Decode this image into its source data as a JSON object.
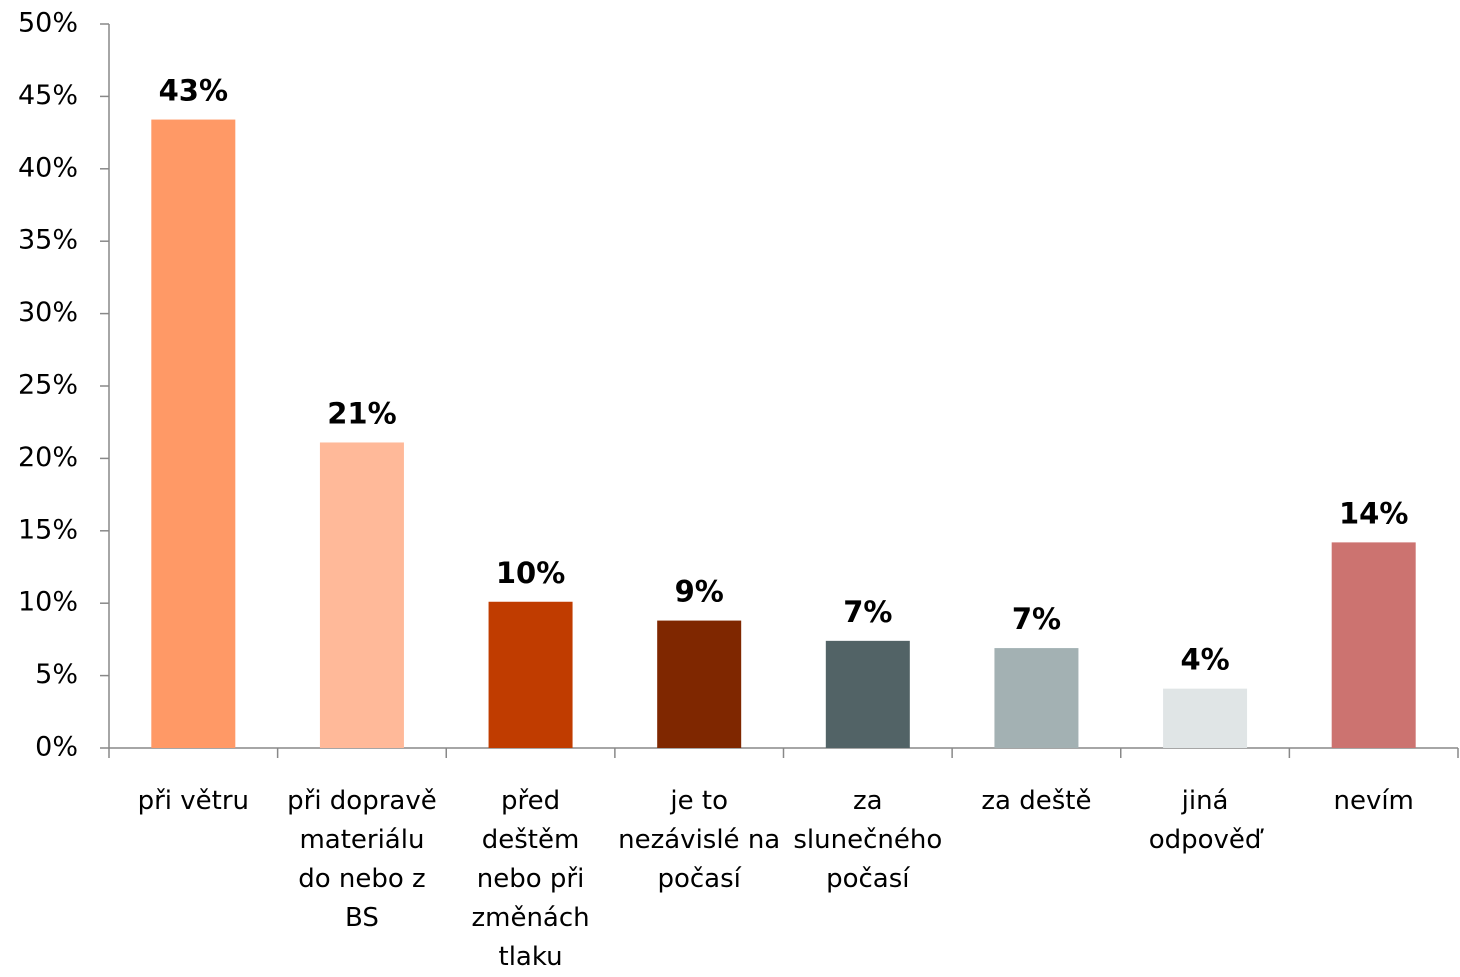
{
  "chart_data": {
    "type": "bar",
    "categories": [
      "při větru",
      "při dopravě materiálu do nebo z BS",
      "před deštěm nebo při změnách tlaku",
      "je to nezávislé na počasí",
      "za slunečného počasí",
      "za deště",
      "jiná odpověď",
      "nevím"
    ],
    "values": [
      43.4,
      21.1,
      10.1,
      8.8,
      7.4,
      6.9,
      4.1,
      14.2
    ],
    "value_labels": [
      "43%",
      "21%",
      "10%",
      "9%",
      "7%",
      "7%",
      "4%",
      "14%"
    ],
    "colors": [
      "#ff9966",
      "#ffb999",
      "#c03c00",
      "#7f2700",
      "#526366",
      "#a3b1b3",
      "#e0e5e6",
      "#cc7370"
    ],
    "ylim": [
      0,
      50
    ],
    "yticks": [
      {
        "value": 0,
        "label": "0%"
      },
      {
        "value": 5,
        "label": "5%"
      },
      {
        "value": 10,
        "label": "10%"
      },
      {
        "value": 15,
        "label": "15%"
      },
      {
        "value": 20,
        "label": "20%"
      },
      {
        "value": 25,
        "label": "25%"
      },
      {
        "value": 30,
        "label": "30%"
      },
      {
        "value": 35,
        "label": "35%"
      },
      {
        "value": 40,
        "label": "40%"
      },
      {
        "value": 45,
        "label": "45%"
      },
      {
        "value": 50,
        "label": "50%"
      }
    ],
    "grid": false
  }
}
